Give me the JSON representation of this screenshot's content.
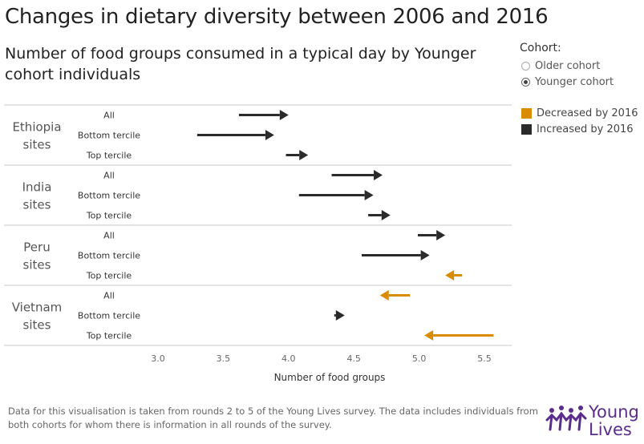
{
  "header": {
    "title": "Changes in dietary diversity between 2006 and 2016",
    "subtitle": "Number of food groups consumed in a typical day by Younger cohort individuals"
  },
  "cohort_filter": {
    "label": "Cohort:",
    "options": [
      {
        "label": "Older cohort",
        "selected": false
      },
      {
        "label": "Younger cohort",
        "selected": true
      }
    ]
  },
  "legend": {
    "items": [
      {
        "label": "Decreased by 2016",
        "color": "#d98c00"
      },
      {
        "label": "Increased by 2016",
        "color": "#2b2b2b"
      }
    ]
  },
  "footnote": "Data for this visualisation is taken from rounds 2 to 5 of the Young Lives survey. The data includes individuals from both cohorts for whom there is information in all rounds of the survey.",
  "logo": {
    "line1": "Young",
    "line2": "Lives",
    "color": "#5a2d8c"
  },
  "chart_data": {
    "type": "arrow",
    "xlabel": "Number of food groups",
    "xlim": [
      2.75,
      5.65
    ],
    "xticks": [
      3.0,
      3.5,
      4.0,
      4.5,
      5.0,
      5.5
    ],
    "tick_labels": [
      "3.0",
      "3.5",
      "4.0",
      "4.5",
      "5.0",
      "5.5"
    ],
    "colors": {
      "increased": "#2b2b2b",
      "decreased": "#d98c00"
    },
    "groups": [
      {
        "name_lines": [
          "Ethiopia",
          "sites"
        ],
        "rows": [
          {
            "label": "All",
            "from": 3.62,
            "to": 4.0
          },
          {
            "label": "Bottom tercile",
            "from": 3.3,
            "to": 3.89
          },
          {
            "label": "Top tercile",
            "from": 3.98,
            "to": 4.15
          }
        ]
      },
      {
        "name_lines": [
          "India",
          "sites"
        ],
        "rows": [
          {
            "label": "All",
            "from": 4.33,
            "to": 4.72
          },
          {
            "label": "Bottom tercile",
            "from": 4.08,
            "to": 4.65
          },
          {
            "label": "Top tercile",
            "from": 4.61,
            "to": 4.78
          }
        ]
      },
      {
        "name_lines": [
          "Peru",
          "sites"
        ],
        "rows": [
          {
            "label": "All",
            "from": 4.99,
            "to": 5.2
          },
          {
            "label": "Bottom tercile",
            "from": 4.56,
            "to": 5.08
          },
          {
            "label": "Top tercile",
            "from": 5.33,
            "to": 5.2
          }
        ]
      },
      {
        "name_lines": [
          "Vietnam",
          "sites"
        ],
        "rows": [
          {
            "label": "All",
            "from": 4.93,
            "to": 4.7
          },
          {
            "label": "Bottom tercile",
            "from": 4.35,
            "to": 4.43
          },
          {
            "label": "Top tercile",
            "from": 5.57,
            "to": 5.04
          }
        ]
      }
    ]
  }
}
